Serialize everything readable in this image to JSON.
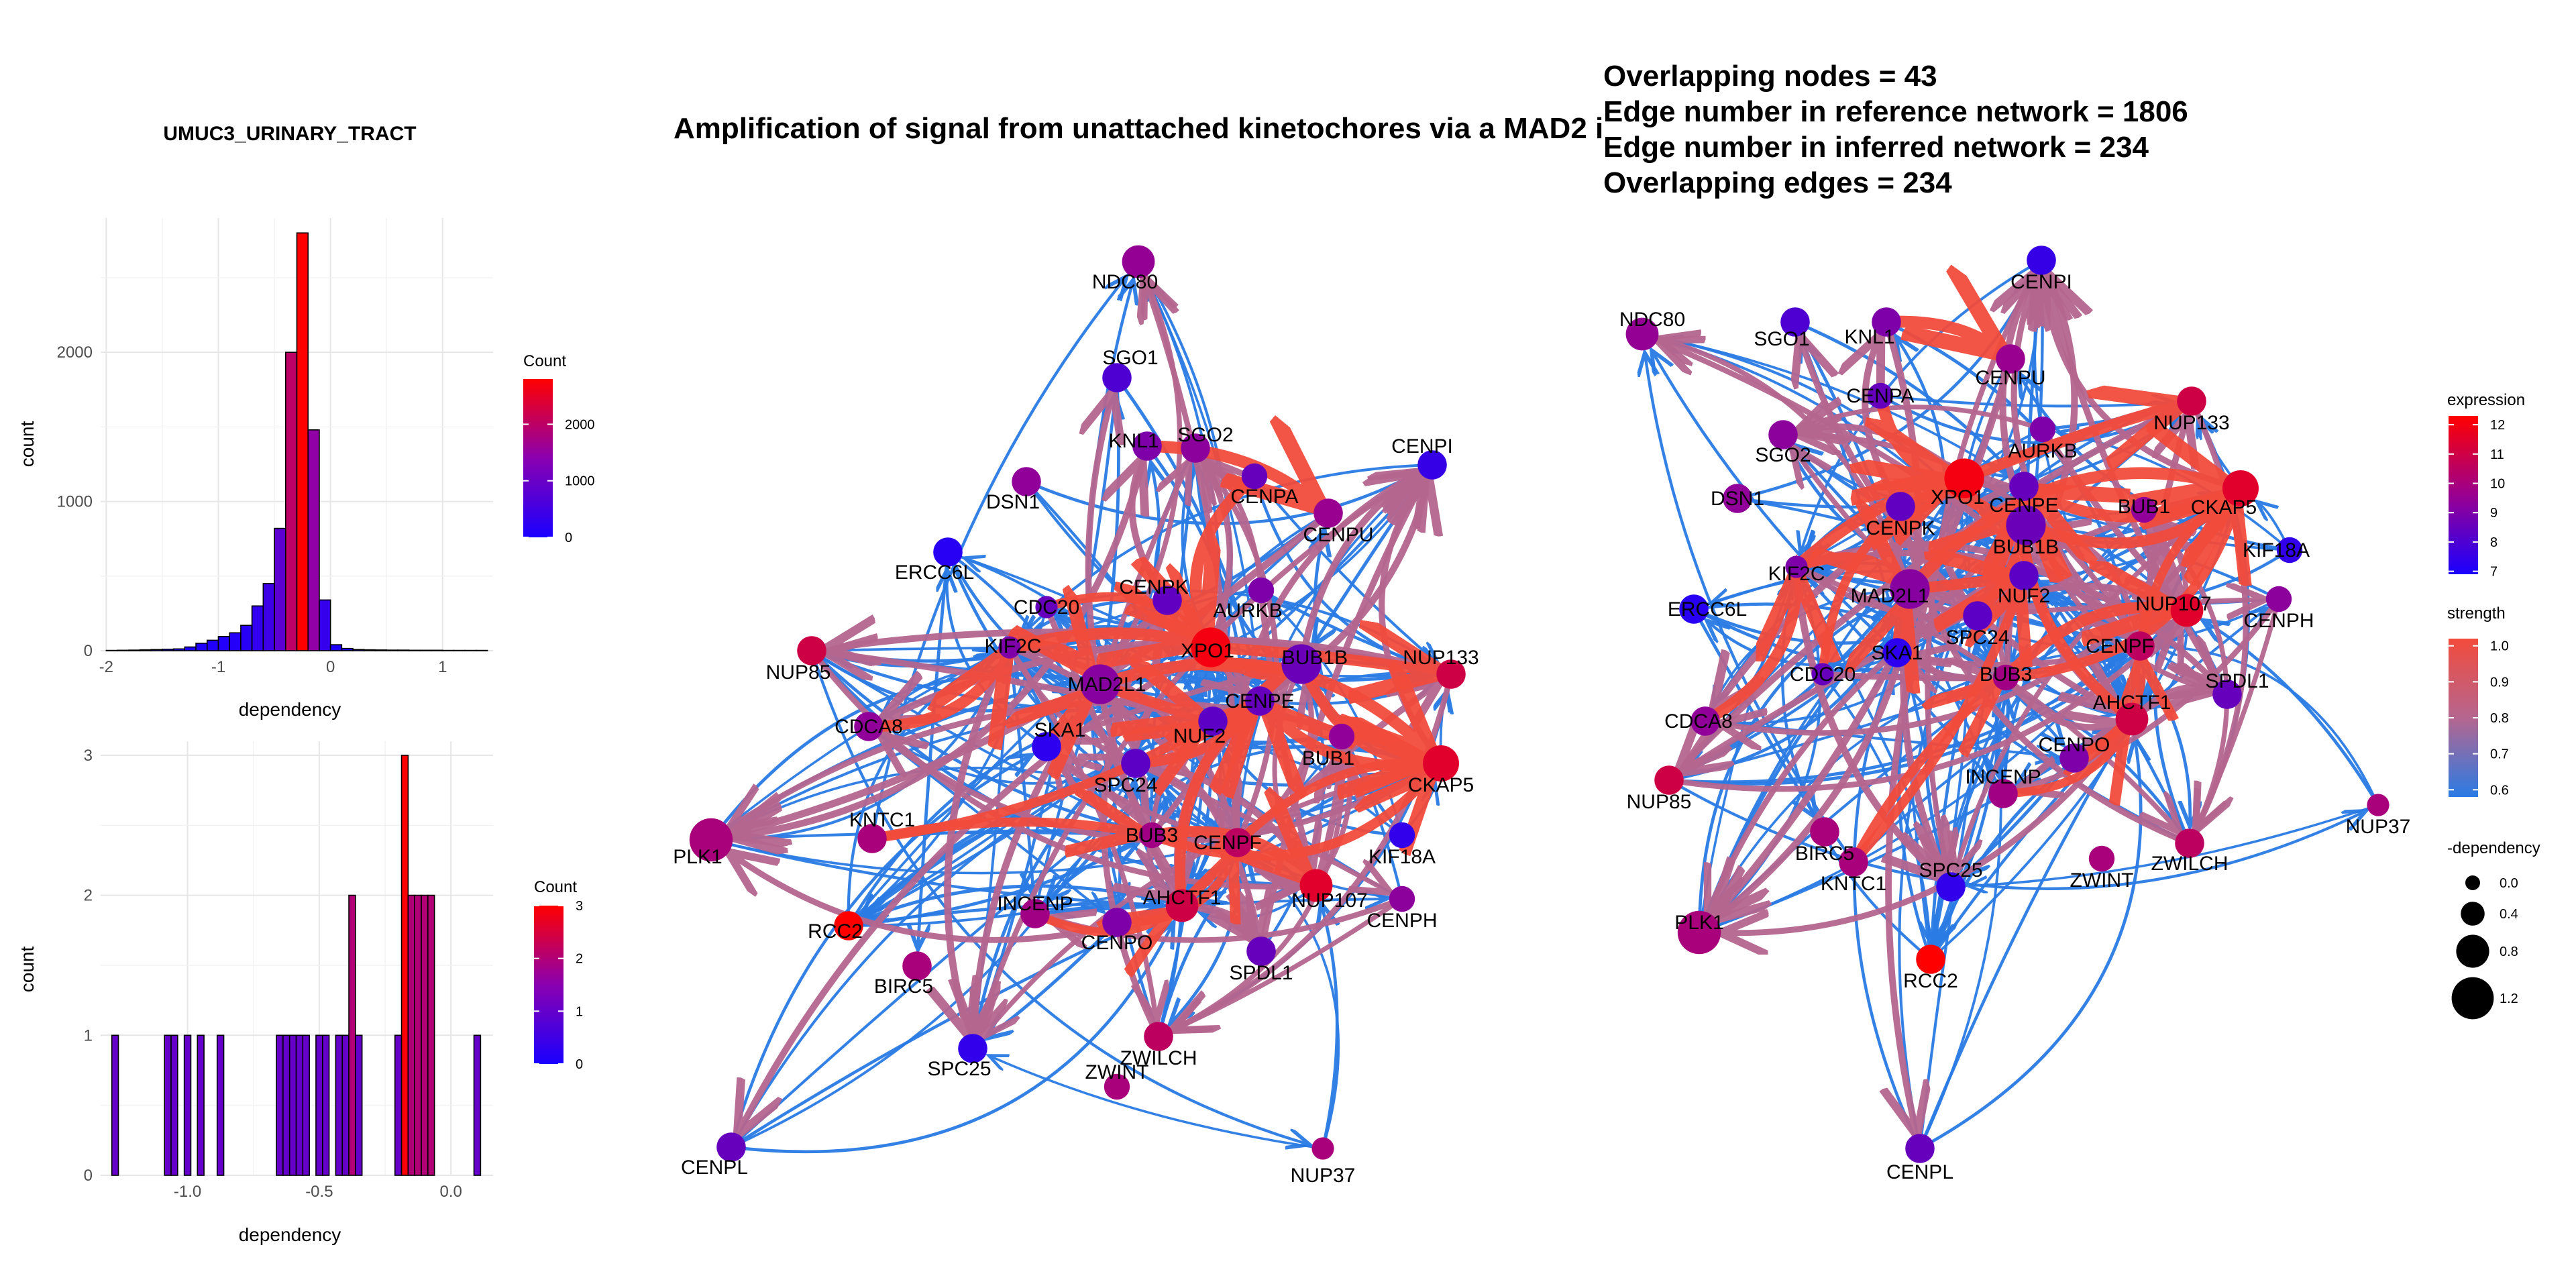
{
  "hist_top": {
    "title": "UMUC3_URINARY_TRACT",
    "xlabel": "dependency",
    "ylabel": "count",
    "xticks": [
      -2,
      -1,
      0,
      1
    ],
    "yticks": [
      0,
      1000,
      2000
    ],
    "xlim": [
      -2.05,
      1.45
    ],
    "ylim": [
      0,
      2900
    ],
    "legend": {
      "title": "Count",
      "ticks": [
        0,
        1000,
        2000
      ],
      "min": 0,
      "max": 2800
    },
    "bins_start": -2.0,
    "bin_width": 0.1,
    "values": [
      2,
      3,
      4,
      6,
      8,
      10,
      12,
      25,
      50,
      70,
      95,
      120,
      170,
      300,
      450,
      820,
      2000,
      2800,
      1480,
      340,
      40,
      15,
      8,
      6,
      5,
      4,
      4,
      3,
      3,
      3,
      2,
      2,
      2,
      2
    ]
  },
  "hist_bottom": {
    "xlabel": "dependency",
    "ylabel": "count",
    "xticks": [
      -1.0,
      -0.5,
      0.0
    ],
    "xtick_labels": [
      "-1.0",
      "-0.5",
      "0.0"
    ],
    "yticks": [
      0,
      1,
      2,
      3
    ],
    "xlim": [
      -1.33,
      0.16
    ],
    "ylim": [
      0,
      3.1
    ],
    "legend": {
      "title": "Count",
      "ticks": [
        0,
        1,
        2,
        3
      ],
      "min": 0,
      "max": 3
    },
    "bins": [
      {
        "x": -1.275,
        "v": 1
      },
      {
        "x": -1.075,
        "v": 1
      },
      {
        "x": -1.05,
        "v": 1
      },
      {
        "x": -1.0,
        "v": 1
      },
      {
        "x": -0.95,
        "v": 1
      },
      {
        "x": -0.875,
        "v": 1
      },
      {
        "x": -0.65,
        "v": 1
      },
      {
        "x": -0.625,
        "v": 1
      },
      {
        "x": -0.6,
        "v": 1
      },
      {
        "x": -0.575,
        "v": 1
      },
      {
        "x": -0.55,
        "v": 1
      },
      {
        "x": -0.5,
        "v": 1
      },
      {
        "x": -0.475,
        "v": 1
      },
      {
        "x": -0.425,
        "v": 1
      },
      {
        "x": -0.4,
        "v": 1
      },
      {
        "x": -0.375,
        "v": 2
      },
      {
        "x": -0.35,
        "v": 1
      },
      {
        "x": -0.2,
        "v": 1
      },
      {
        "x": -0.175,
        "v": 3
      },
      {
        "x": -0.15,
        "v": 2
      },
      {
        "x": -0.125,
        "v": 2
      },
      {
        "x": -0.1,
        "v": 2
      },
      {
        "x": -0.075,
        "v": 2
      },
      {
        "x": 0.1,
        "v": 1
      }
    ],
    "bin_width": 0.025
  },
  "middle_network": {
    "title": "Amplification  of signal from unattached  kinetochores via a MAD2  i"
  },
  "right_network": {
    "lines": [
      "Overlapping nodes = 43",
      "Edge number in reference network = 1806",
      "Edge number in inferred network = 234",
      "Overlapping edges = 234"
    ]
  },
  "legends": {
    "expression": {
      "title": "expression",
      "ticks": [
        7,
        8,
        9,
        10,
        11,
        12
      ],
      "min": 6.9,
      "max": 12.3
    },
    "strength": {
      "title": "strength",
      "ticks": [
        "0.6",
        "0.7",
        "0.8",
        "0.9",
        "1.0"
      ],
      "min": 0.58,
      "max": 1.02
    },
    "dependency": {
      "title": "-dependency",
      "sizes": [
        "0.0",
        "0.4",
        "0.8",
        "1.2"
      ]
    }
  },
  "colors": {
    "blue": "#2a7be4",
    "mauve": "#b5668f",
    "red": "#f24b3c",
    "grid": "#e6e6e6"
  },
  "chart_data": [
    {
      "type": "bar",
      "title": "UMUC3_URINARY_TRACT",
      "xlabel": "dependency",
      "ylabel": "count",
      "note": "histogram of gene dependency; color encodes Count (blue→red)",
      "ylim": [
        0,
        2900
      ]
    },
    {
      "type": "bar",
      "xlabel": "dependency",
      "ylabel": "count",
      "ylim": [
        0,
        3
      ]
    },
    {
      "type": "network",
      "title": "Amplification  of signal from unattached  kinetochores via a MAD2  i",
      "nodes": [
        {
          "id": "NDC80",
          "expr": 9.5,
          "dep": 0.4
        },
        {
          "id": "SGO1",
          "expr": 8.0,
          "dep": 0.3
        },
        {
          "id": "KNL1",
          "expr": 9.0,
          "dep": 0.3
        },
        {
          "id": "SGO2",
          "expr": 9.3,
          "dep": 0.3
        },
        {
          "id": "CENPI",
          "expr": 7.5,
          "dep": 0.3
        },
        {
          "id": "CENPA",
          "expr": 8.5,
          "dep": 0.2
        },
        {
          "id": "DSN1",
          "expr": 9.4,
          "dep": 0.3
        },
        {
          "id": "CENPU",
          "expr": 9.6,
          "dep": 0.3
        },
        {
          "id": "ERCC6L",
          "expr": 7.2,
          "dep": 0.3
        },
        {
          "id": "CDC20",
          "expr": 8.5,
          "dep": 0.1
        },
        {
          "id": "CENPK",
          "expr": 8.4,
          "dep": 0.3
        },
        {
          "id": "AURKB",
          "expr": 9.0,
          "dep": 0.2
        },
        {
          "id": "NUP85",
          "expr": 11.0,
          "dep": 0.3
        },
        {
          "id": "KIF2C",
          "expr": 9.0,
          "dep": 0.1
        },
        {
          "id": "XPO1",
          "expr": 12.0,
          "dep": 0.6
        },
        {
          "id": "BUB1B",
          "expr": 8.6,
          "dep": 0.6
        },
        {
          "id": "NUP133",
          "expr": 11.0,
          "dep": 0.3
        },
        {
          "id": "MAD2L1",
          "expr": 9.2,
          "dep": 0.6
        },
        {
          "id": "CDCA8",
          "expr": 9.4,
          "dep": 0.3
        },
        {
          "id": "CENPE",
          "expr": 8.5,
          "dep": 0.3
        },
        {
          "id": "SKA1",
          "expr": 7.3,
          "dep": 0.3
        },
        {
          "id": "NUF2",
          "expr": 8.3,
          "dep": 0.3
        },
        {
          "id": "BUB1",
          "expr": 9.4,
          "dep": 0.2
        },
        {
          "id": "SPC24",
          "expr": 8.3,
          "dep": 0.3
        },
        {
          "id": "CKAP5",
          "expr": 11.5,
          "dep": 0.5
        },
        {
          "id": "PLK1",
          "expr": 10.0,
          "dep": 0.7
        },
        {
          "id": "KNTC1",
          "expr": 10.0,
          "dep": 0.3
        },
        {
          "id": "BUB3",
          "expr": 9.8,
          "dep": 0.2
        },
        {
          "id": "CENPF",
          "expr": 10.5,
          "dep": 0.3
        },
        {
          "id": "KIF18A",
          "expr": 7.4,
          "dep": 0.2
        },
        {
          "id": "AHCTF1",
          "expr": 11.0,
          "dep": 0.4
        },
        {
          "id": "NUP107",
          "expr": 11.5,
          "dep": 0.4
        },
        {
          "id": "CENPH",
          "expr": 9.3,
          "dep": 0.2
        },
        {
          "id": "INCENP",
          "expr": 9.8,
          "dep": 0.3
        },
        {
          "id": "RCC2",
          "expr": 12.3,
          "dep": 0.3
        },
        {
          "id": "CENPO",
          "expr": 9.0,
          "dep": 0.3
        },
        {
          "id": "SPDL1",
          "expr": 8.5,
          "dep": 0.3
        },
        {
          "id": "BIRC5",
          "expr": 10.0,
          "dep": 0.3
        },
        {
          "id": "ZWILCH",
          "expr": 10.5,
          "dep": 0.3
        },
        {
          "id": "SPC25",
          "expr": 7.4,
          "dep": 0.3
        },
        {
          "id": "ZWINT",
          "expr": 10.0,
          "dep": 0.2
        },
        {
          "id": "CENPL",
          "expr": 8.5,
          "dep": 0.3
        },
        {
          "id": "NUP37",
          "expr": 10.0,
          "dep": 0.1
        }
      ]
    },
    {
      "type": "network",
      "note": "same node set in alternative layout"
    }
  ]
}
